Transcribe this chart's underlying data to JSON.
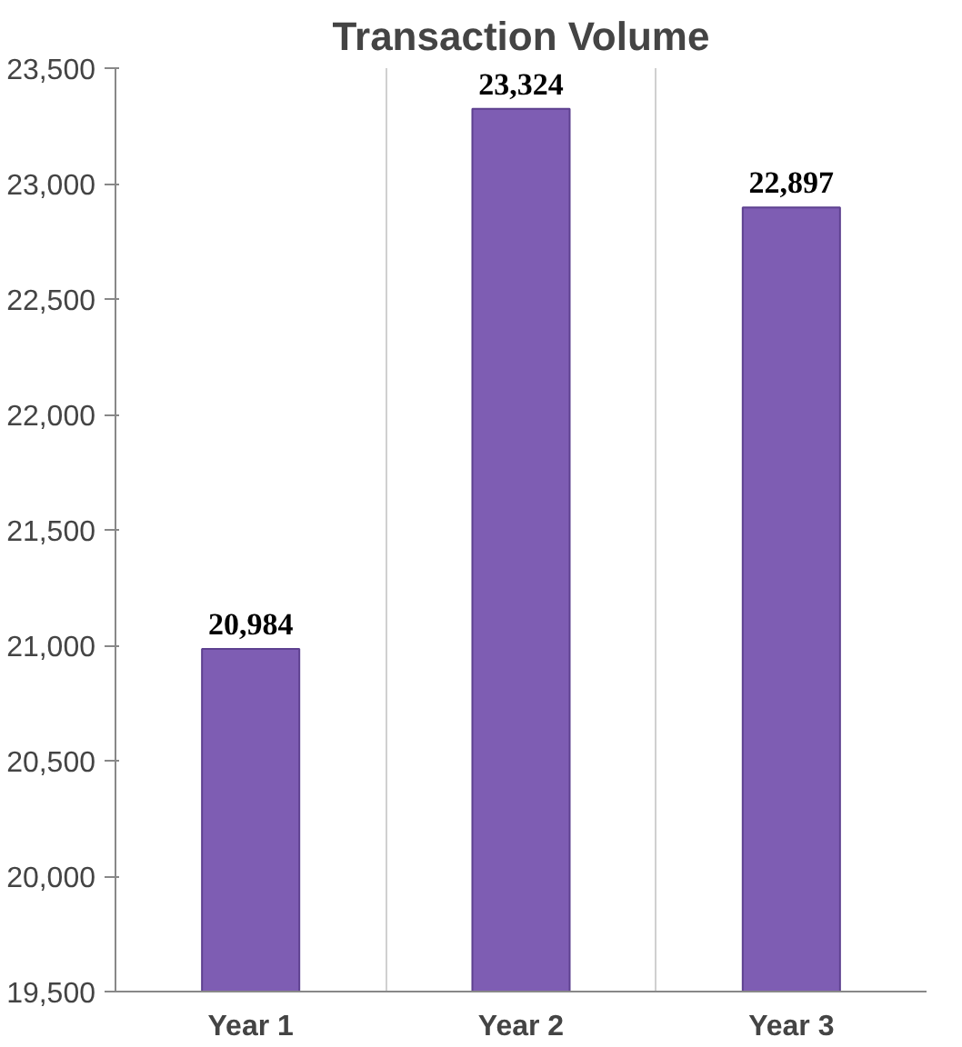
{
  "chart_data": {
    "type": "bar",
    "title": "Transaction Volume",
    "categories": [
      "Year 1",
      "Year 2",
      "Year 3"
    ],
    "values": [
      20984,
      23324,
      22897
    ],
    "color": "#7e5db3",
    "ylim": [
      19500,
      23500
    ],
    "yticks": [
      {
        "value": 19500,
        "label": "19,500"
      },
      {
        "value": 20000,
        "label": "20,000"
      },
      {
        "value": 20500,
        "label": "20,500"
      },
      {
        "value": 21000,
        "label": "21,000"
      },
      {
        "value": 21500,
        "label": "21,500"
      },
      {
        "value": 22000,
        "label": "22,000"
      },
      {
        "value": 22500,
        "label": "22,500"
      },
      {
        "value": 23000,
        "label": "23,000"
      },
      {
        "value": 23500,
        "label": "23,500"
      }
    ],
    "value_labels": [
      "20,984",
      "23,324",
      "22,897"
    ],
    "grid": "x"
  }
}
